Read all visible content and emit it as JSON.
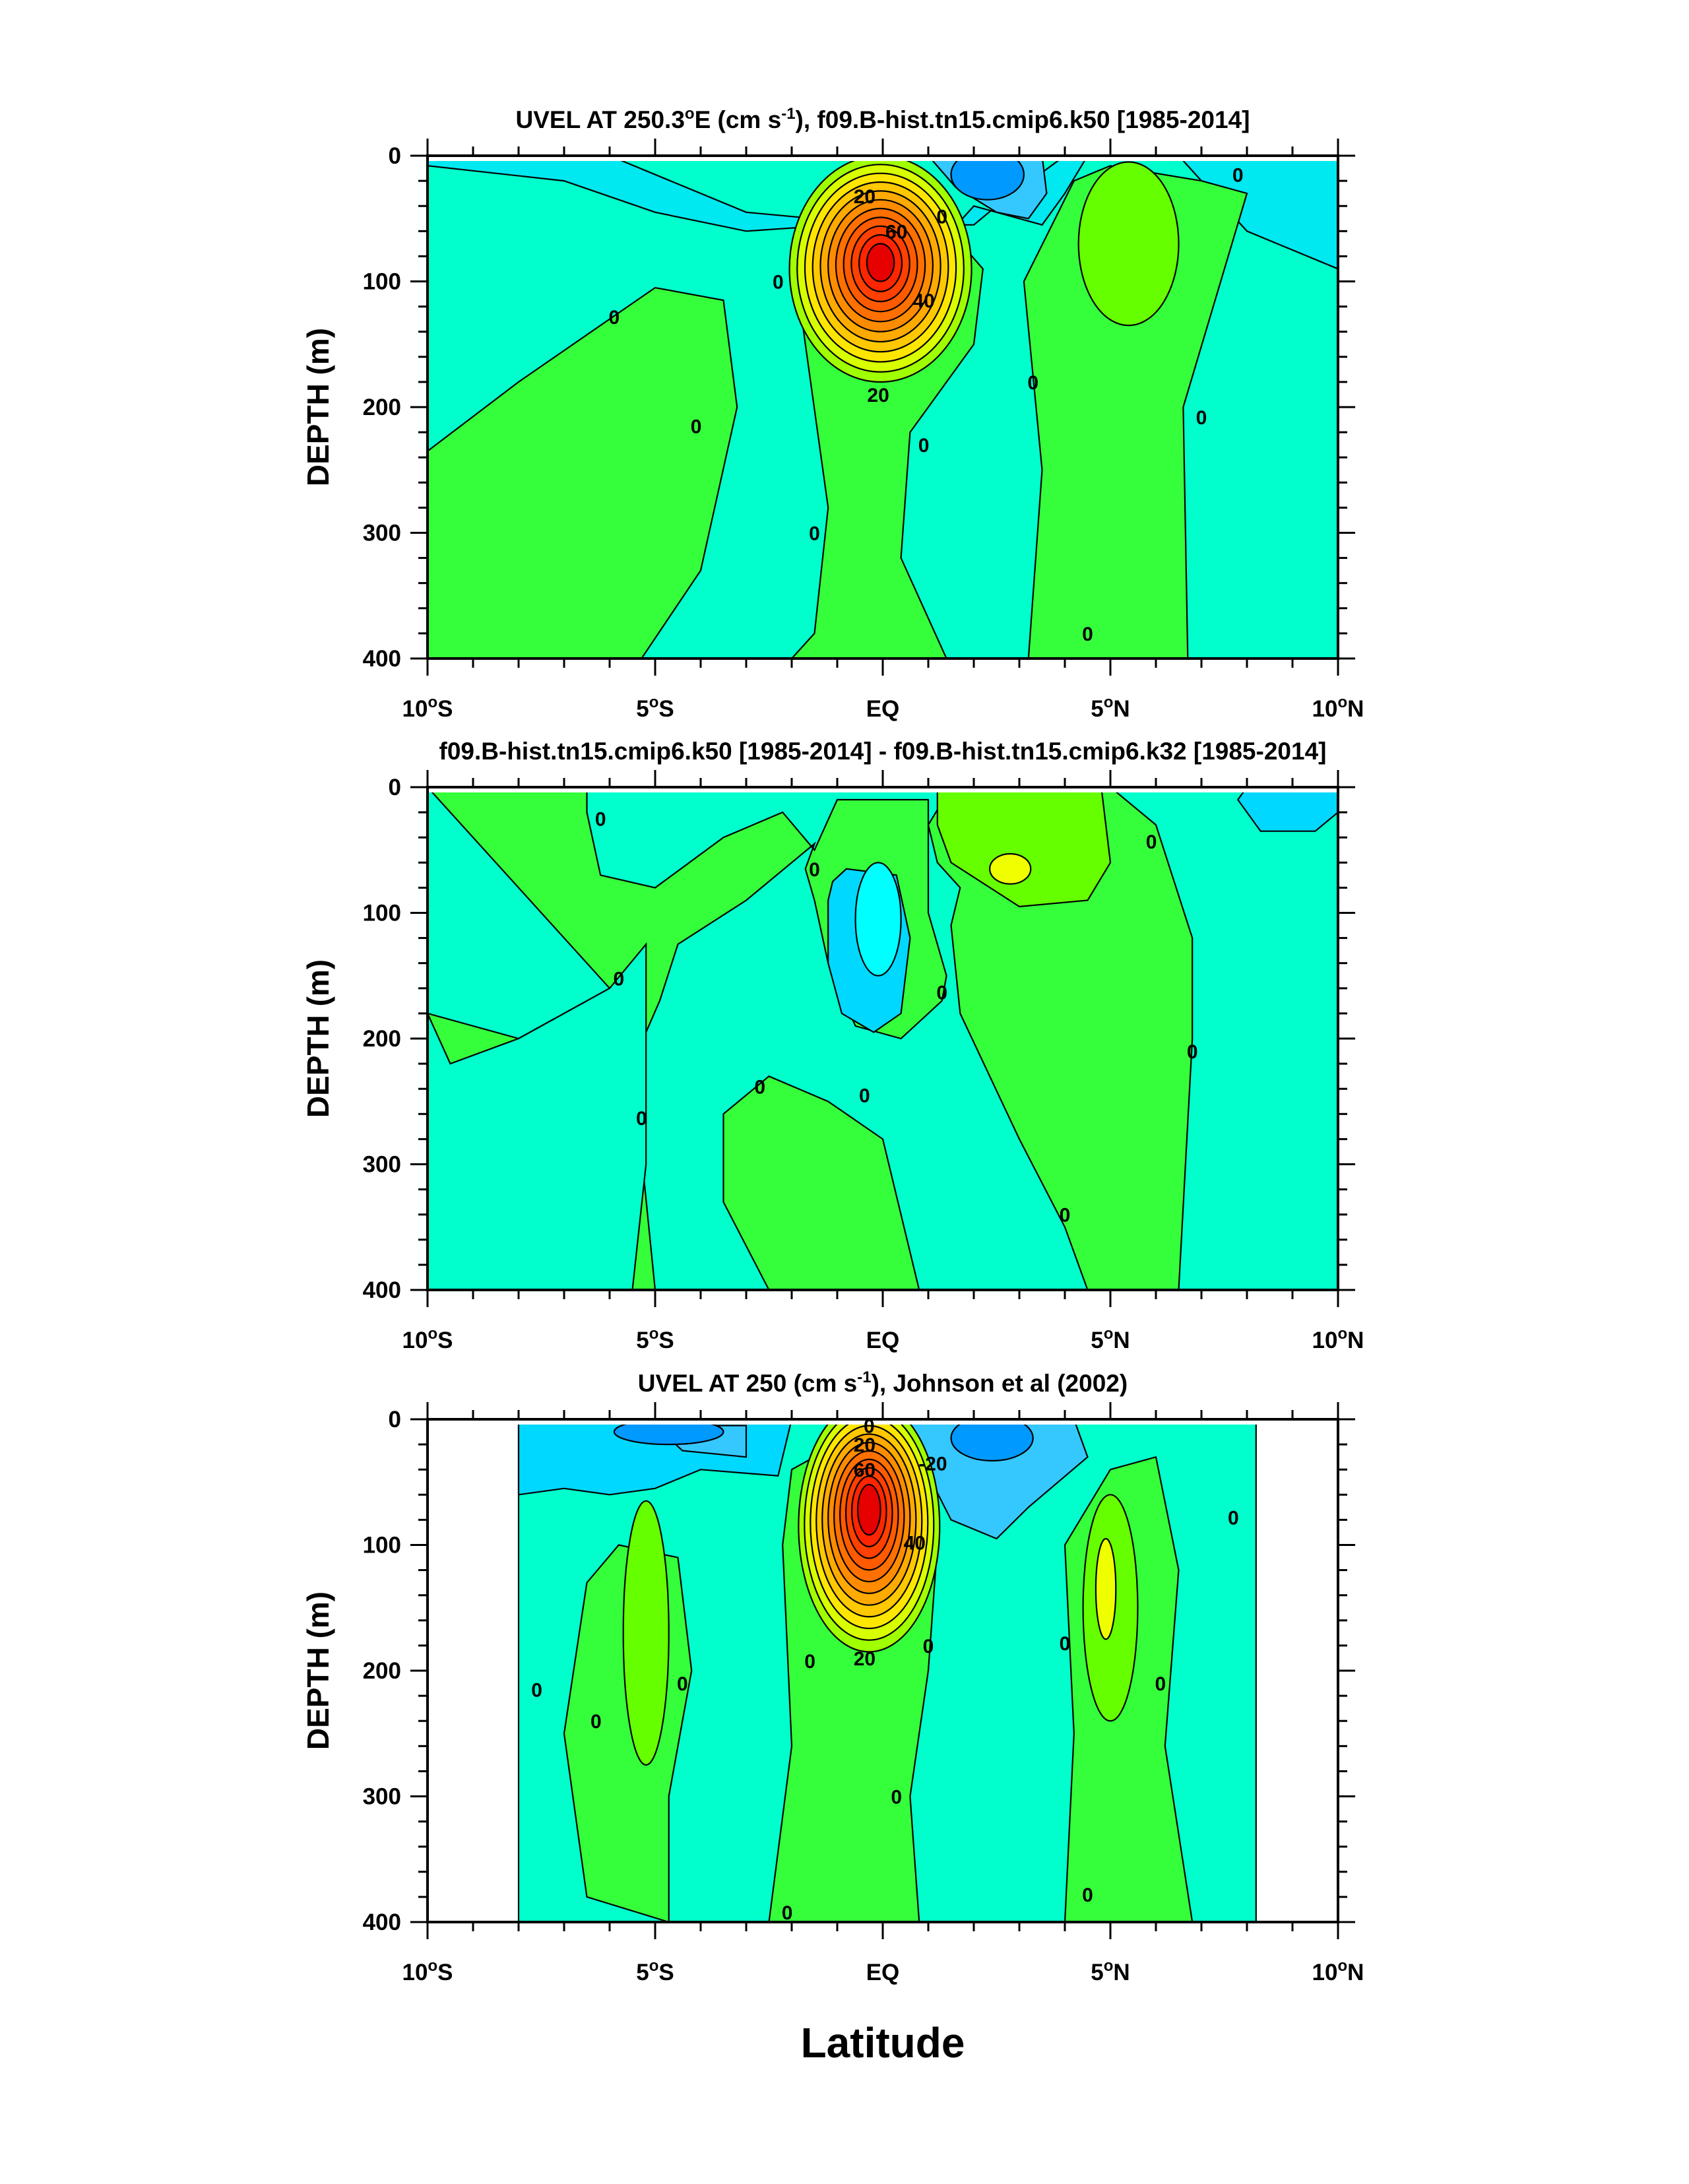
{
  "chart_data": [
    {
      "type": "contour",
      "title": "UVEL AT 250.3°E (cm s⁻¹), f09.B-hist.tn15.cmip6.k50 [1985-2014]",
      "ylabel": "DEPTH (m)",
      "xlim": [
        -10,
        10
      ],
      "ylim": [
        400,
        0
      ],
      "y_ticks": [
        "0",
        "100",
        "200",
        "300",
        "400"
      ],
      "x_ticks": [
        "10°S",
        "5°S",
        "EQ",
        "5°N",
        "10°N"
      ],
      "contour_labels": [
        "20",
        "60",
        "40",
        "20",
        "0",
        "0",
        "0",
        "0",
        "0",
        "0",
        "0",
        "0",
        "0",
        "0"
      ],
      "features": {
        "core_max_cm_s": 90,
        "core_lat": 0,
        "core_depth_m": 85,
        "surface_westward_lat": 2.2
      }
    },
    {
      "type": "contour",
      "title": "f09.B-hist.tn15.cmip6.k50 [1985-2014] - f09.B-hist.tn15.cmip6.k32 [1985-2014]",
      "ylabel": "DEPTH (m)",
      "xlim": [
        -10,
        10
      ],
      "ylim": [
        400,
        0
      ],
      "y_ticks": [
        "0",
        "100",
        "200",
        "300",
        "400"
      ],
      "x_ticks": [
        "10°S",
        "5°S",
        "EQ",
        "5°N",
        "10°N"
      ],
      "contour_labels": [
        "0",
        "0",
        "0",
        "0",
        "0",
        "0",
        "0",
        "0",
        "0",
        "0",
        "0"
      ]
    },
    {
      "type": "contour",
      "title": "UVEL AT 250 (cm s⁻¹), Johnson et al (2002)",
      "ylabel": "DEPTH (m)",
      "xlabel": "Latitude",
      "xlim": [
        -10,
        10
      ],
      "ylim": [
        400,
        0
      ],
      "y_ticks": [
        "0",
        "100",
        "200",
        "300",
        "400"
      ],
      "x_ticks": [
        "10°S",
        "5°S",
        "EQ",
        "5°N",
        "10°N"
      ],
      "contour_labels": [
        "0",
        "20",
        "60",
        "40",
        "20",
        "-20",
        "0",
        "0",
        "0",
        "0",
        "0",
        "0",
        "0",
        "0",
        "0",
        "0",
        "0"
      ],
      "data_lat_range": [
        -8,
        8.2
      ],
      "features": {
        "core_max_cm_s": 90,
        "core_lat": -0.3,
        "core_depth_m": 70
      }
    }
  ]
}
